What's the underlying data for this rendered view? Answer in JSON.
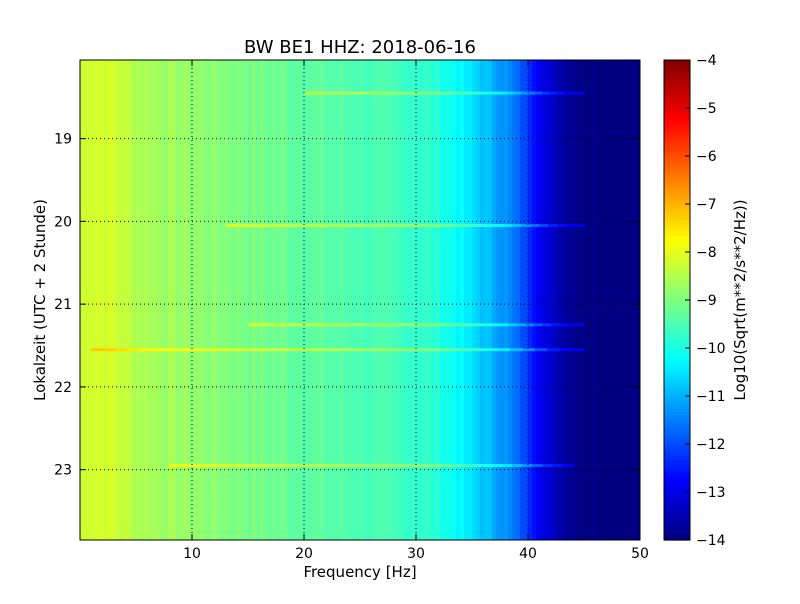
{
  "chart_data": {
    "type": "heatmap",
    "title": "BW BE1 HHZ: 2018-06-16",
    "xlabel": "Frequency [Hz]",
    "ylabel": "Lokalzeit (UTC + 2 Stunde)",
    "xlim": [
      0,
      50
    ],
    "ylim": [
      18.05,
      23.85
    ],
    "y_inverted": true,
    "x_ticks": [
      10,
      20,
      30,
      40,
      50
    ],
    "y_ticks": [
      19,
      20,
      21,
      22,
      23
    ],
    "grid": true,
    "grid_style": "dotted",
    "colorbar": {
      "label": "Log10(Sqrt(m**2/s**2/Hz))",
      "range": [
        -14,
        -4
      ],
      "ticks": [
        -14,
        -13,
        -12,
        -11,
        -10,
        -9,
        -8,
        -7,
        -6,
        -5,
        -4
      ],
      "colormap": "jet"
    },
    "spectral_profile": {
      "frequency_hz": [
        0,
        1,
        3,
        5,
        8,
        12,
        16,
        20,
        25,
        30,
        32,
        34,
        36,
        38,
        40,
        42,
        44,
        46,
        50
      ],
      "log_amplitude": [
        -8.3,
        -8.1,
        -8.2,
        -8.5,
        -8.7,
        -8.9,
        -9.1,
        -9.3,
        -9.5,
        -9.7,
        -9.9,
        -10.3,
        -10.8,
        -11.3,
        -12.2,
        -13.3,
        -13.8,
        -14,
        -14
      ]
    },
    "horizontal_features": [
      {
        "time": 18.45,
        "f_start": 20,
        "f_end": 45
      },
      {
        "time": 20.05,
        "f_start": 13,
        "f_end": 45
      },
      {
        "time": 21.25,
        "f_start": 15,
        "f_end": 45
      },
      {
        "time": 21.55,
        "f_start": 1,
        "f_end": 45
      },
      {
        "time": 22.95,
        "f_start": 8,
        "f_end": 44
      }
    ]
  }
}
